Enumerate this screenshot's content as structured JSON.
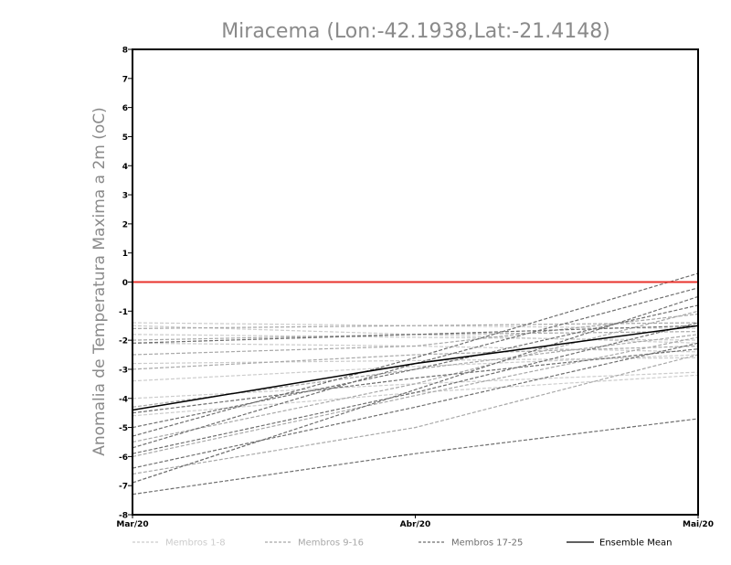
{
  "chart_data": {
    "type": "line",
    "title": "Miracema (Lon:-42.1938,Lat:-21.4148)",
    "xlabel": "",
    "ylabel": "Anomalia de Temperatura Maxima a 2m (oC)",
    "categories": [
      "Mar/20",
      "Abr/20",
      "Mai/20"
    ],
    "ylim": [
      -8,
      8
    ],
    "yticks": [
      -8,
      -7,
      -6,
      -5,
      -4,
      -3,
      -2,
      -1,
      0,
      1,
      2,
      3,
      4,
      5,
      6,
      7,
      8
    ],
    "reference_line": {
      "value": 0,
      "color": "#e8332c"
    },
    "series": [
      {
        "name": "Membros 1-8",
        "group": 0,
        "values": [
          -1.4,
          -1.5,
          -1.6
        ]
      },
      {
        "name": "Membros 1-8",
        "group": 0,
        "values": [
          -1.8,
          -1.9,
          -2.0
        ]
      },
      {
        "name": "Membros 1-8",
        "group": 0,
        "values": [
          -2.1,
          -2.2,
          -2.4
        ]
      },
      {
        "name": "Membros 1-8",
        "group": 0,
        "values": [
          -2.8,
          -2.7,
          -2.6
        ]
      },
      {
        "name": "Membros 1-8",
        "group": 0,
        "values": [
          -3.4,
          -2.9,
          -2.5
        ]
      },
      {
        "name": "Membros 1-8",
        "group": 0,
        "values": [
          -4.0,
          -3.5,
          -3.1
        ]
      },
      {
        "name": "Membros 1-8",
        "group": 0,
        "values": [
          -1.5,
          -1.8,
          -2.1
        ]
      },
      {
        "name": "Membros 1-8",
        "group": 0,
        "values": [
          -4.6,
          -3.8,
          -3.2
        ]
      },
      {
        "name": "Membros 9-16",
        "group": 1,
        "values": [
          -1.6,
          -1.5,
          -1.4
        ]
      },
      {
        "name": "Membros 9-16",
        "group": 1,
        "values": [
          -2.0,
          -1.8,
          -1.7
        ]
      },
      {
        "name": "Membros 9-16",
        "group": 1,
        "values": [
          -3.0,
          -2.5,
          -2.2
        ]
      },
      {
        "name": "Membros 9-16",
        "group": 1,
        "values": [
          -4.3,
          -3.0,
          -1.8
        ]
      },
      {
        "name": "Membros 9-16",
        "group": 1,
        "values": [
          -5.5,
          -3.5,
          -1.0
        ]
      },
      {
        "name": "Membros 9-16",
        "group": 1,
        "values": [
          -6.0,
          -3.9,
          -1.9
        ]
      },
      {
        "name": "Membros 9-16",
        "group": 1,
        "values": [
          -6.6,
          -5.0,
          -2.5
        ]
      },
      {
        "name": "Membros 9-16",
        "group": 1,
        "values": [
          -2.5,
          -2.2,
          -1.1
        ]
      },
      {
        "name": "Membros 17-25",
        "group": 2,
        "values": [
          -5.3,
          -2.6,
          0.3
        ]
      },
      {
        "name": "Membros 17-25",
        "group": 2,
        "values": [
          -5.7,
          -2.8,
          -0.2
        ]
      },
      {
        "name": "Membros 17-25",
        "group": 2,
        "values": [
          -6.9,
          -3.7,
          -0.5
        ]
      },
      {
        "name": "Membros 17-25",
        "group": 2,
        "values": [
          -7.3,
          -5.9,
          -4.7
        ]
      },
      {
        "name": "Membros 17-25",
        "group": 2,
        "values": [
          -6.4,
          -4.3,
          -2.1
        ]
      },
      {
        "name": "Membros 17-25",
        "group": 2,
        "values": [
          -5.0,
          -3.0,
          -0.8
        ]
      },
      {
        "name": "Membros 17-25",
        "group": 2,
        "values": [
          -4.5,
          -3.3,
          -2.3
        ]
      },
      {
        "name": "Membros 17-25",
        "group": 2,
        "values": [
          -2.1,
          -1.8,
          -1.5
        ]
      },
      {
        "name": "Membros 17-25",
        "group": 2,
        "values": [
          -5.9,
          -3.8,
          -1.4
        ]
      },
      {
        "name": "Ensemble Mean",
        "group": 3,
        "values": [
          -4.4,
          -2.8,
          -1.5
        ]
      }
    ],
    "legend": [
      {
        "label": "Membros 1-8",
        "color": "#cccccc",
        "style": "dashed"
      },
      {
        "label": "Membros 9-16",
        "color": "#a8a8a8",
        "style": "dashed"
      },
      {
        "label": "Membros 17-25",
        "color": "#6e6e6e",
        "style": "dashed"
      },
      {
        "label": "Ensemble Mean",
        "color": "#000000",
        "style": "solid"
      }
    ]
  }
}
